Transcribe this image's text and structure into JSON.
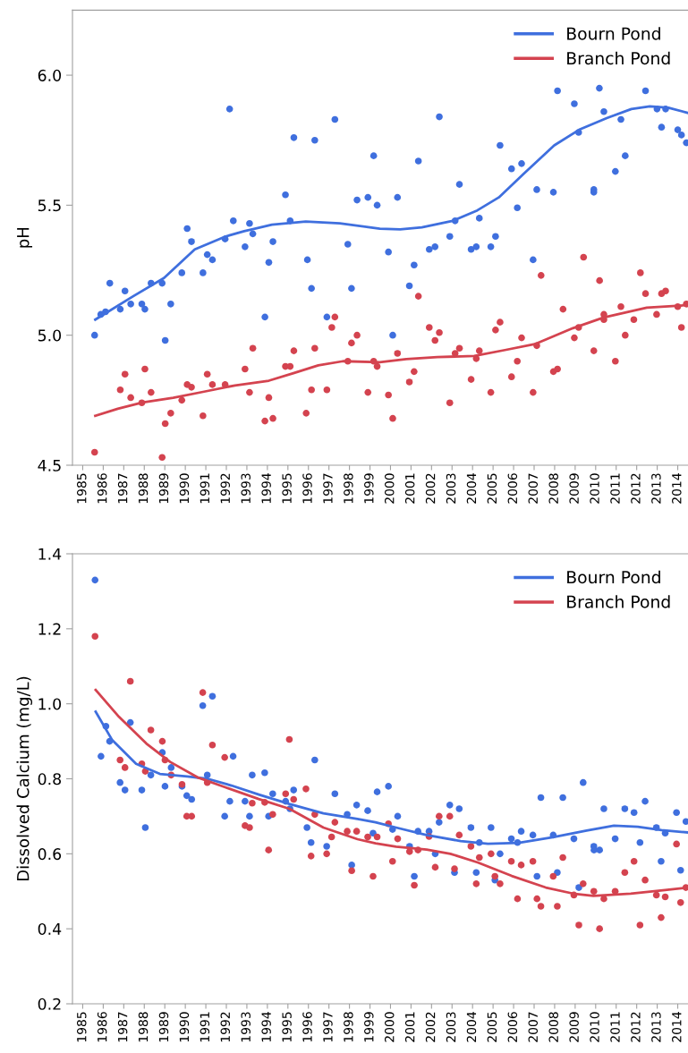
{
  "chart_data": [
    {
      "type": "scatter",
      "ylabel": "pH",
      "xlim": [
        1984.5,
        2014.5
      ],
      "ylim": [
        4.5,
        6.25
      ],
      "yticks": [
        4.5,
        {
          "value": 5.0,
          "label": "5.0"
        },
        5.5,
        {
          "value": 6.0,
          "label": "6.0"
        }
      ],
      "xticks": [
        1985,
        1986,
        1987,
        1988,
        1989,
        1990,
        1991,
        1992,
        1993,
        1994,
        1995,
        1996,
        1997,
        1998,
        1999,
        2000,
        2001,
        2002,
        2003,
        2004,
        2005,
        2006,
        2007,
        2008,
        2009,
        2010,
        2011,
        2012,
        2013,
        2014
      ],
      "grid": false,
      "legend": "top right",
      "series": [
        {
          "color": "#3f6fde",
          "marker": "circle",
          "x": [
            1985.58,
            1985.88,
            1986.11,
            1986.32,
            1986.83,
            1987.06,
            1987.34,
            1987.88,
            1988.03,
            1988.33,
            1988.87,
            1989.02,
            1989.29,
            1989.83,
            1990.09,
            1990.3,
            1990.86,
            1991.07,
            1991.32,
            1991.94,
            1992.16,
            1992.34,
            1992.91,
            1993.13,
            1993.29,
            1993.88,
            1994.07,
            1994.27,
            1994.88,
            1995.11,
            1995.29,
            1995.95,
            1996.15,
            1996.31,
            1996.9,
            1997.29,
            1997.92,
            1998.1,
            1998.37,
            1998.9,
            1999.18,
            1999.35,
            1999.9,
            2000.11,
            2000.34,
            2000.92,
            2001.15,
            2001.36,
            2001.89,
            2002.17,
            2002.38,
            2002.89,
            2003.15,
            2003.36,
            2003.93,
            2004.18,
            2004.33,
            2004.89,
            2005.12,
            2005.34,
            2005.9,
            2006.18,
            2006.39,
            2006.95,
            2007.13,
            2007.94,
            2008.14,
            2008.96,
            2009.17,
            2009.91,
            2009.91,
            2010.18,
            2010.4,
            2010.96,
            2011.23,
            2011.44,
            2012.43,
            2012.99,
            2013.21,
            2013.41,
            2014.0,
            2014.18,
            2014.42
          ],
          "values": [
            5.0,
            5.08,
            5.09,
            5.2,
            5.1,
            5.17,
            5.12,
            5.12,
            5.1,
            5.2,
            5.2,
            4.98,
            5.12,
            5.24,
            5.41,
            5.36,
            5.24,
            5.31,
            5.29,
            5.37,
            5.87,
            5.44,
            5.34,
            5.43,
            5.39,
            5.07,
            5.28,
            5.36,
            5.54,
            5.44,
            5.76,
            5.29,
            5.18,
            5.75,
            5.07,
            5.83,
            5.35,
            5.18,
            5.52,
            5.53,
            5.69,
            5.5,
            5.32,
            5.0,
            5.53,
            5.19,
            5.27,
            5.67,
            5.33,
            5.34,
            5.84,
            5.38,
            5.44,
            5.58,
            5.33,
            5.34,
            5.45,
            5.34,
            5.38,
            5.73,
            5.64,
            5.49,
            5.66,
            5.29,
            5.56,
            5.55,
            5.94,
            5.89,
            5.78,
            5.56,
            5.55,
            5.95,
            5.86,
            5.63,
            5.83,
            5.69,
            5.94,
            5.87,
            5.8,
            5.87,
            5.79,
            5.77,
            5.74
          ]
        },
        {
          "color": "#d4434f",
          "marker": "circle",
          "x": [
            1985.58,
            1986.83,
            1987.06,
            1987.34,
            1987.88,
            1988.03,
            1988.33,
            1988.87,
            1989.02,
            1989.29,
            1989.83,
            1990.09,
            1990.3,
            1990.86,
            1991.07,
            1991.32,
            1991.94,
            1992.91,
            1993.13,
            1993.29,
            1993.88,
            1994.07,
            1994.27,
            1994.88,
            1995.11,
            1995.29,
            1995.89,
            1996.15,
            1996.31,
            1996.9,
            1997.14,
            1997.29,
            1997.92,
            1998.1,
            1998.37,
            1998.9,
            1999.18,
            1999.35,
            1999.9,
            2000.11,
            2000.34,
            2000.92,
            2001.15,
            2001.36,
            2001.89,
            2002.17,
            2002.38,
            2002.89,
            2003.15,
            2003.36,
            2003.93,
            2004.18,
            2004.33,
            2004.89,
            2005.12,
            2005.34,
            2005.9,
            2006.18,
            2006.39,
            2006.95,
            2007.13,
            2007.34,
            2007.94,
            2008.14,
            2008.41,
            2008.96,
            2009.17,
            2009.41,
            2009.91,
            2010.19,
            2010.4,
            2010.4,
            2010.96,
            2011.23,
            2011.44,
            2011.86,
            2012.18,
            2012.43,
            2012.97,
            2013.21,
            2013.41,
            2014.0,
            2014.18,
            2014.42
          ],
          "values": [
            4.55,
            4.79,
            4.85,
            4.76,
            4.74,
            4.87,
            4.78,
            4.53,
            4.66,
            4.7,
            4.75,
            4.81,
            4.8,
            4.69,
            4.85,
            4.81,
            4.81,
            4.87,
            4.78,
            4.95,
            4.67,
            4.76,
            4.68,
            4.88,
            4.88,
            4.94,
            4.7,
            4.79,
            4.95,
            4.79,
            5.03,
            5.07,
            4.9,
            4.97,
            5.0,
            4.78,
            4.9,
            4.88,
            4.77,
            4.68,
            4.93,
            4.82,
            4.86,
            5.15,
            5.03,
            4.98,
            5.01,
            4.74,
            4.93,
            4.95,
            4.83,
            4.91,
            4.94,
            4.78,
            5.02,
            5.05,
            4.84,
            4.9,
            4.99,
            4.78,
            4.96,
            5.23,
            4.86,
            4.87,
            5.1,
            4.99,
            5.03,
            5.3,
            4.94,
            5.21,
            5.08,
            5.06,
            4.9,
            5.11,
            5.0,
            5.06,
            5.24,
            5.16,
            5.08,
            5.16,
            5.17,
            5.11,
            5.03,
            5.12
          ]
        },
        {
          "type": "line",
          "name": "Bourn Pond",
          "color": "#3f6fde",
          "marker": "none",
          "line_style": "solid",
          "x": [
            1985.61,
            1987.46,
            1988.96,
            1990.46,
            1991.97,
            1992.87,
            1994.22,
            1995.87,
            1997.53,
            1999.48,
            2000.47,
            2001.53,
            2003.03,
            2004.23,
            2005.28,
            2006.48,
            2007.98,
            2009.19,
            2010.54,
            2011.74,
            2012.64,
            2013.54,
            2014.49
          ],
          "values": [
            5.06,
            5.15,
            5.22,
            5.33,
            5.38,
            5.4,
            5.425,
            5.437,
            5.43,
            5.41,
            5.407,
            5.415,
            5.44,
            5.48,
            5.53,
            5.62,
            5.73,
            5.79,
            5.835,
            5.87,
            5.88,
            5.875,
            5.855
          ]
        },
        {
          "type": "line",
          "name": "Branch Pond",
          "color": "#d4434f",
          "marker": "none",
          "line_style": "solid",
          "x": [
            1985.61,
            1986.71,
            1987.91,
            1989.41,
            1990.92,
            1992.42,
            1994.07,
            1995.27,
            1996.48,
            1997.68,
            1999.48,
            2000.77,
            2002.28,
            2004.08,
            2005.58,
            2007.08,
            2008.89,
            2010.39,
            2012.49,
            2014.49
          ],
          "values": [
            4.69,
            4.717,
            4.741,
            4.759,
            4.783,
            4.807,
            4.825,
            4.854,
            4.884,
            4.9,
            4.896,
            4.908,
            4.916,
            4.92,
            4.943,
            4.967,
            5.027,
            5.068,
            5.106,
            5.116
          ]
        }
      ]
    },
    {
      "type": "scatter",
      "ylabel": "Dissolved Calcium (mg/L)",
      "xlim": [
        1984.5,
        2014.5
      ],
      "ylim": [
        0.2,
        1.4
      ],
      "yticks": [
        0.2,
        0.4,
        0.6,
        0.8,
        {
          "value": 1.0,
          "label": "1.0"
        },
        1.2,
        1.4
      ],
      "xticks": [
        1985,
        1986,
        1987,
        1988,
        1989,
        1990,
        1991,
        1992,
        1993,
        1994,
        1995,
        1996,
        1997,
        1998,
        1999,
        2000,
        2001,
        2002,
        2003,
        2004,
        2005,
        2006,
        2007,
        2008,
        2009,
        2010,
        2011,
        2012,
        2013,
        2014
      ],
      "grid": false,
      "legend": "top right",
      "series": [
        {
          "color": "#3f6fde",
          "marker": "circle",
          "x": [
            1985.6,
            1985.89,
            1986.13,
            1986.31,
            1986.82,
            1987.06,
            1987.32,
            1987.88,
            1988.05,
            1988.32,
            1988.88,
            1989.01,
            1989.31,
            1989.84,
            1990.07,
            1990.31,
            1990.85,
            1991.07,
            1991.32,
            1991.92,
            1992.17,
            1992.33,
            1992.91,
            1993.13,
            1993.26,
            1993.87,
            1994.06,
            1994.26,
            1994.89,
            1995.1,
            1995.28,
            1995.93,
            1996.13,
            1996.31,
            1996.89,
            1997.29,
            1997.89,
            1998.11,
            1998.35,
            1998.89,
            1999.15,
            1999.35,
            1999.9,
            2000.1,
            2000.35,
            2000.93,
            2001.16,
            2001.34,
            2001.88,
            2002.18,
            2002.37,
            2002.89,
            2003.12,
            2003.35,
            2003.92,
            2004.18,
            2004.33,
            2004.9,
            2005.09,
            2005.34,
            2005.89,
            2006.19,
            2006.37,
            2006.94,
            2007.14,
            2007.33,
            2007.93,
            2008.13,
            2008.4,
            2008.94,
            2009.18,
            2009.39,
            2009.91,
            2009.92,
            2010.19,
            2010.4,
            2010.95,
            2011.42,
            2011.87,
            2012.16,
            2012.41,
            2012.96,
            2013.19,
            2013.39,
            2013.94,
            2014.14,
            2014.4
          ],
          "values": [
            1.33,
            0.86,
            0.94,
            0.9,
            0.79,
            0.77,
            0.95,
            0.77,
            0.67,
            0.81,
            0.87,
            0.78,
            0.83,
            0.78,
            0.755,
            0.745,
            0.995,
            0.81,
            1.02,
            0.7,
            0.74,
            0.86,
            0.74,
            0.7,
            0.81,
            0.816,
            0.7,
            0.76,
            0.74,
            0.72,
            0.77,
            0.67,
            0.63,
            0.85,
            0.62,
            0.76,
            0.705,
            0.57,
            0.73,
            0.715,
            0.655,
            0.765,
            0.78,
            0.665,
            0.7,
            0.62,
            0.54,
            0.66,
            0.66,
            0.6,
            0.684,
            0.73,
            0.55,
            0.72,
            0.67,
            0.55,
            0.63,
            0.67,
            0.53,
            0.6,
            0.64,
            0.63,
            0.66,
            0.65,
            0.54,
            0.75,
            0.65,
            0.55,
            0.75,
            0.64,
            0.51,
            0.79,
            0.62,
            0.61,
            0.61,
            0.72,
            0.64,
            0.72,
            0.71,
            0.63,
            0.74,
            0.67,
            0.58,
            0.655,
            0.71,
            0.556,
            0.686
          ]
        },
        {
          "color": "#d4434f",
          "marker": "circle",
          "x": [
            1985.6,
            1986.82,
            1987.06,
            1987.32,
            1987.88,
            1988.05,
            1988.32,
            1988.88,
            1989.01,
            1989.31,
            1989.84,
            1990.07,
            1990.31,
            1990.85,
            1991.07,
            1991.32,
            1991.92,
            1992.91,
            1993.13,
            1993.26,
            1993.87,
            1994.06,
            1994.26,
            1994.89,
            1995.07,
            1995.28,
            1995.88,
            1996.13,
            1996.31,
            1996.89,
            1997.13,
            1997.29,
            1997.89,
            1998.11,
            1998.35,
            1998.89,
            1999.15,
            1999.35,
            1999.9,
            2000.1,
            2000.35,
            2000.93,
            2001.16,
            2001.34,
            2001.88,
            2002.18,
            2002.37,
            2002.89,
            2003.12,
            2003.35,
            2003.92,
            2004.18,
            2004.33,
            2004.9,
            2005.09,
            2005.34,
            2005.89,
            2006.19,
            2006.37,
            2006.94,
            2007.14,
            2007.33,
            2007.93,
            2008.13,
            2008.4,
            2008.94,
            2009.18,
            2009.39,
            2009.91,
            2010.19,
            2010.4,
            2010.95,
            2011.42,
            2011.87,
            2012.16,
            2012.41,
            2012.96,
            2013.19,
            2013.39,
            2013.94,
            2014.14,
            2014.4
          ],
          "values": [
            1.18,
            0.85,
            0.83,
            1.06,
            0.84,
            0.82,
            0.93,
            0.9,
            0.85,
            0.81,
            0.785,
            0.7,
            0.7,
            1.03,
            0.79,
            0.89,
            0.857,
            0.675,
            0.67,
            0.735,
            0.737,
            0.61,
            0.705,
            0.76,
            0.905,
            0.745,
            0.773,
            0.594,
            0.705,
            0.6,
            0.645,
            0.684,
            0.66,
            0.555,
            0.66,
            0.645,
            0.54,
            0.645,
            0.68,
            0.58,
            0.64,
            0.606,
            0.516,
            0.61,
            0.646,
            0.564,
            0.7,
            0.7,
            0.56,
            0.65,
            0.62,
            0.52,
            0.59,
            0.6,
            0.54,
            0.52,
            0.58,
            0.48,
            0.57,
            0.58,
            0.48,
            0.46,
            0.54,
            0.46,
            0.59,
            0.49,
            0.41,
            0.52,
            0.5,
            0.4,
            0.48,
            0.5,
            0.55,
            0.58,
            0.41,
            0.53,
            0.49,
            0.43,
            0.485,
            0.626,
            0.47,
            0.51
          ]
        },
        {
          "type": "line",
          "name": "Bourn Pond",
          "color": "#3f6fde",
          "marker": "none",
          "line_style": "solid",
          "x": [
            1985.63,
            1986.44,
            1987.6,
            1988.76,
            1990.09,
            1991.09,
            1992.25,
            1993.58,
            1995.07,
            1996.73,
            1998.39,
            1999.27,
            2000.27,
            2001.76,
            2003.42,
            2004.75,
            2006.24,
            2007.9,
            2009.56,
            2010.89,
            2012.05,
            2013.21,
            2014.47
          ],
          "values": [
            0.979,
            0.903,
            0.84,
            0.813,
            0.806,
            0.8,
            0.782,
            0.758,
            0.733,
            0.708,
            0.693,
            0.684,
            0.67,
            0.65,
            0.634,
            0.627,
            0.629,
            0.644,
            0.662,
            0.675,
            0.672,
            0.663,
            0.657
          ]
        },
        {
          "type": "line",
          "name": "Branch Pond",
          "color": "#d4434f",
          "marker": "none",
          "line_style": "solid",
          "x": [
            1985.63,
            1986.77,
            1988.1,
            1989.26,
            1990.59,
            1991.92,
            1993.58,
            1995.07,
            1996.73,
            1998.39,
            1999.27,
            2000.27,
            2001.76,
            2002.92,
            2004.25,
            2005.91,
            2007.57,
            2008.89,
            2009.89,
            2011.71,
            2013.38,
            2014.47
          ],
          "values": [
            1.037,
            0.965,
            0.894,
            0.845,
            0.804,
            0.778,
            0.746,
            0.72,
            0.67,
            0.639,
            0.628,
            0.619,
            0.611,
            0.6,
            0.577,
            0.541,
            0.51,
            0.494,
            0.488,
            0.494,
            0.503,
            0.51
          ]
        }
      ]
    }
  ]
}
